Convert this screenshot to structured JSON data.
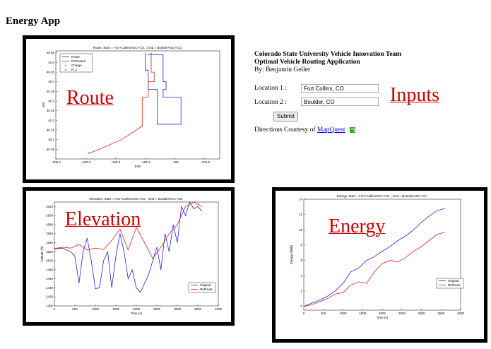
{
  "app": {
    "title": "Energy App"
  },
  "overlay_labels": {
    "route": "Route",
    "inputs": "Inputs",
    "elevation": "Elevation",
    "energy": "Energy"
  },
  "info": {
    "team": "Colorado State University Vehicle Innovation Team",
    "app_name": "Optimal Vehicle Routing Application",
    "author": "By: Benjamin Geller"
  },
  "form": {
    "location1_label": "Location 1 :",
    "location1_value": "Fort Collins, CO",
    "location2_label": "Location 2 :",
    "location2_value": "Boulder, CO",
    "submit_label": "Submit"
  },
  "directions": {
    "prefix": "Directions Courtesy of",
    "link": "MapQuest",
    "icon": "external-link-icon"
  },
  "colors": {
    "original": "#2222dd",
    "rerouted": "#dd2222",
    "label": "#cc0000"
  },
  "chart_data": [
    {
      "type": "line",
      "title": "Route, Start = Fort+Collins%2C+CO, ; End = Boulder%2C+CO,",
      "xlabel": "E/W",
      "ylabel": "N/S",
      "xlim": [
        -105.4,
        -104.85
      ],
      "ylim": [
        40.0,
        40.56
      ],
      "xticks": [
        -105.4,
        -105.3,
        -105.2,
        -105.1,
        -105,
        -104.9
      ],
      "xtick_labels": [
        "−105.4",
        "−105.3",
        "−105.2",
        "−105.1",
        "−105",
        "−104.9"
      ],
      "yticks": [
        40.05,
        40.1,
        40.15,
        40.2,
        40.25,
        40.3,
        40.35,
        40.4,
        40.45,
        40.5,
        40.55
      ],
      "ytick_labels": [
        "40.05",
        "40.1",
        "40.15",
        "40.2",
        "40.25",
        "40.3",
        "40.35",
        "40.4",
        "40.45",
        "40.5",
        "40.55"
      ],
      "legend": [
        "Route",
        "ReRouted",
        "Charge",
        "R_s"
      ],
      "series": [
        {
          "name": "Route",
          "color": "#2222dd",
          "x": [
            -105.08,
            -105.08,
            -105.04,
            -105.04,
            -105.03,
            -105.03,
            -105.04,
            -105.04,
            -104.98,
            -104.98,
            -105.06,
            -105.06,
            -105.09,
            -105.09,
            -105.1,
            -105.1
          ],
          "y": [
            40.55,
            40.54,
            40.54,
            40.4,
            40.4,
            40.36,
            40.36,
            40.32,
            40.32,
            40.18,
            40.18,
            40.36,
            40.36,
            40.46,
            40.46,
            40.55
          ]
        },
        {
          "name": "ReRouted",
          "color": "#dd2222",
          "x": [
            -105.29,
            -105.27,
            -105.24,
            -105.21,
            -105.18,
            -105.16,
            -105.13,
            -105.11,
            -105.11,
            -105.09,
            -105.09,
            -105.07,
            -105.07,
            -105.08,
            -105.08,
            -105.09
          ],
          "y": [
            40.03,
            40.04,
            40.06,
            40.08,
            40.1,
            40.12,
            40.15,
            40.17,
            40.32,
            40.32,
            40.4,
            40.4,
            40.45,
            40.45,
            40.54,
            40.54
          ]
        }
      ]
    },
    {
      "type": "line",
      "title": "Elevation, Start = Fort+Collins%2C+CO, ; End = Boulder%2C+CO,",
      "xlabel": "Time (s)",
      "ylabel": "Altitude (ft)",
      "xlim": [
        0,
        4000
      ],
      "ylim": [
        1400,
        1630
      ],
      "xticks": [
        0,
        500,
        1000,
        1500,
        2000,
        2500,
        3000,
        3500,
        4000
      ],
      "yticks": [
        1400,
        1420,
        1440,
        1460,
        1480,
        1500,
        1520,
        1540,
        1560,
        1580,
        1600,
        1620
      ],
      "legend": [
        "Original",
        "ReRoute"
      ],
      "legend_position": "bottom-right",
      "series": [
        {
          "name": "Original",
          "color": "#2222dd",
          "x": [
            0,
            200,
            400,
            500,
            600,
            700,
            800,
            900,
            1000,
            1100,
            1200,
            1300,
            1400,
            1500,
            1600,
            1700,
            1800,
            1900,
            2000,
            2100,
            2200,
            2300,
            2400,
            2500,
            2600,
            2700,
            2800,
            2900,
            3000,
            3100,
            3200,
            3300,
            3400,
            3500,
            3600
          ],
          "y": [
            1526,
            1528,
            1520,
            1510,
            1450,
            1520,
            1550,
            1500,
            1438,
            1440,
            1500,
            1520,
            1440,
            1510,
            1560,
            1520,
            1460,
            1480,
            1440,
            1430,
            1450,
            1470,
            1500,
            1530,
            1480,
            1560,
            1520,
            1580,
            1540,
            1620,
            1600,
            1630,
            1615,
            1620,
            1610
          ]
        },
        {
          "name": "ReRoute",
          "color": "#dd2222",
          "x": [
            0,
            200,
            400,
            600,
            800,
            1000,
            1200,
            1400,
            1600,
            1800,
            2000,
            2200,
            2400,
            2600,
            2800,
            3000,
            3200,
            3400,
            3600
          ],
          "y": [
            1527,
            1530,
            1528,
            1536,
            1524,
            1528,
            1525,
            1545,
            1570,
            1524,
            1574,
            1540,
            1505,
            1530,
            1560,
            1580,
            1620,
            1630,
            1620
          ]
        }
      ]
    },
    {
      "type": "line",
      "title": "Energy, Start = Fort+Collins%2C+CO, ; End = Boulder%2C+CO,",
      "xlabel": "Time (s)",
      "ylabel": "Energy (kWh)",
      "xlim": [
        0,
        4000
      ],
      "ylim": [
        -0.5,
        14
      ],
      "xticks": [
        0,
        500,
        1000,
        1500,
        2000,
        2500,
        3000,
        3500,
        4000
      ],
      "yticks": [
        0,
        2,
        4,
        6,
        8,
        10,
        12,
        14
      ],
      "legend": [
        "Original",
        "ReRoute"
      ],
      "legend_position": "right",
      "series": [
        {
          "name": "Original",
          "color": "#2222dd",
          "x": [
            0,
            200,
            400,
            600,
            800,
            1000,
            1200,
            1400,
            1600,
            1800,
            2000,
            2200,
            2400,
            2600,
            2800,
            3000,
            3200,
            3400,
            3600
          ],
          "y": [
            0,
            0.4,
            0.8,
            1.3,
            2.0,
            3.0,
            4.5,
            5.0,
            6.0,
            6.5,
            7.2,
            7.8,
            8.6,
            9.2,
            10.0,
            11.0,
            11.8,
            12.5,
            12.8
          ]
        },
        {
          "name": "ReRoute",
          "color": "#dd2222",
          "x": [
            0,
            200,
            400,
            600,
            800,
            1000,
            1200,
            1400,
            1600,
            1800,
            2000,
            2200,
            2400,
            2600,
            2800,
            3000,
            3200,
            3400,
            3600
          ],
          "y": [
            0,
            0.2,
            0.6,
            1.0,
            1.6,
            1.8,
            2.8,
            3.2,
            3.0,
            4.5,
            5.6,
            6.0,
            5.8,
            6.4,
            7.2,
            7.8,
            8.6,
            9.4,
            9.7
          ]
        }
      ]
    }
  ]
}
